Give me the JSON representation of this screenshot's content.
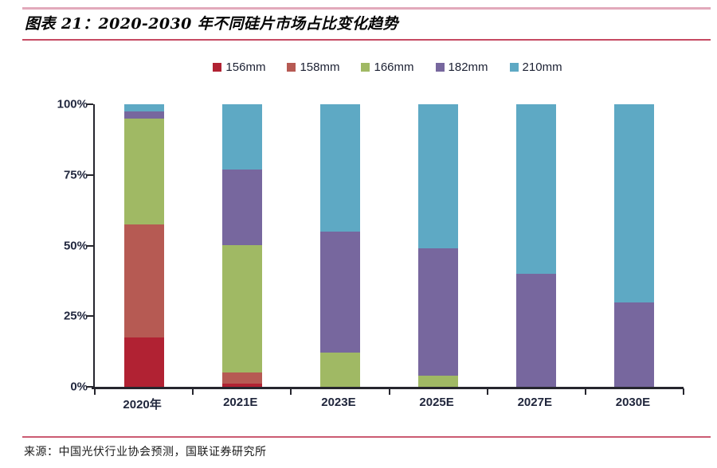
{
  "header": {
    "title": "图表 21：2020-2030 年不同硅片市场占比变化趋势"
  },
  "footer": {
    "source": "来源：中国光伏行业协会预测，国联证券研究所"
  },
  "colors": {
    "accent_line_light": "#e2a9bb",
    "accent_line_red": "#c64a62",
    "axis": "#26262e",
    "series_156mm": "#b12233",
    "series_158mm": "#b65a53",
    "series_166mm": "#a0b964",
    "series_182mm": "#77679e",
    "series_210mm": "#5ea9c4"
  },
  "chart_data": {
    "type": "bar",
    "stacked": true,
    "unit": "%",
    "title": "2020-2030 年不同硅片市场占比变化趋势",
    "xlabel": "",
    "ylabel": "",
    "ylim": [
      0,
      100
    ],
    "grid": false,
    "legend_position": "top",
    "categories": [
      "2020年",
      "2021E",
      "2023E",
      "2025E",
      "2027E",
      "2030E"
    ],
    "yticks": [
      "100%",
      "75%",
      "50%",
      "25%",
      "0%"
    ],
    "series": [
      {
        "name": "156mm",
        "color": "#b12233",
        "values": [
          17.5,
          1,
          0,
          0,
          0,
          0
        ]
      },
      {
        "name": "158mm",
        "color": "#b65a53",
        "values": [
          40,
          4,
          0,
          0,
          0,
          0
        ]
      },
      {
        "name": "166mm",
        "color": "#a0b964",
        "values": [
          37.5,
          45,
          12,
          4,
          0,
          0
        ]
      },
      {
        "name": "182mm",
        "color": "#77679e",
        "values": [
          2.5,
          27,
          43,
          45,
          40,
          30
        ]
      },
      {
        "name": "210mm",
        "color": "#5ea9c4",
        "values": [
          2.5,
          23,
          45,
          51,
          60,
          70
        ]
      }
    ]
  }
}
